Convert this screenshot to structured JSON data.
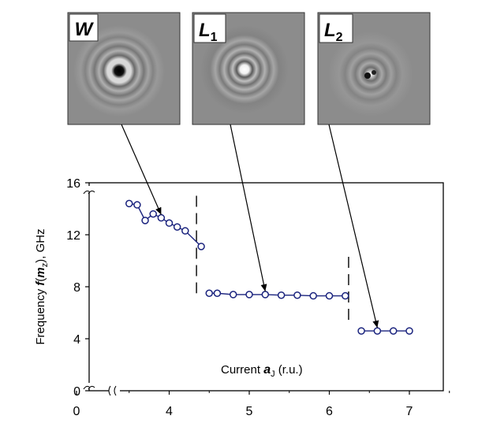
{
  "insets": [
    {
      "id": "W",
      "letter": "W",
      "subscript": ""
    },
    {
      "id": "L1",
      "letter": "L",
      "subscript": "1"
    },
    {
      "id": "L2",
      "letter": "L",
      "subscript": "2"
    }
  ],
  "chart_data": {
    "type": "line",
    "ylabel_pre": "Frequency ",
    "ylabel_f": "f",
    "ylabel_paren_open": "(",
    "ylabel_m": "m",
    "ylabel_sub": "z",
    "ylabel_post": "), GHz",
    "xlabel_pre": "Current ",
    "xlabel_a": "a",
    "xlabel_sub": "J",
    "xlabel_post": " (r.u.)",
    "x_ticks": [
      "0",
      "4",
      "5",
      "6",
      "7"
    ],
    "y_ticks": [
      "0",
      "4",
      "8",
      "12",
      "16"
    ],
    "axis_breaks": {
      "x": "between 0 and 3.5",
      "y": "between 0 and 4 and above 16"
    },
    "grid": false,
    "series": [
      {
        "mode": "W",
        "x": [
          3.5,
          3.6,
          3.7,
          3.8,
          3.9,
          4.0,
          4.1,
          4.2,
          4.4
        ],
        "y": [
          14.4,
          14.3,
          13.1,
          13.6,
          13.3,
          12.9,
          12.6,
          12.3,
          11.1
        ]
      },
      {
        "mode": "L1",
        "x": [
          4.5,
          4.6,
          4.8,
          5.0,
          5.2,
          5.4,
          5.6,
          5.8,
          6.0,
          6.2
        ],
        "y": [
          7.5,
          7.5,
          7.4,
          7.4,
          7.4,
          7.35,
          7.35,
          7.3,
          7.3,
          7.3
        ]
      },
      {
        "mode": "L2",
        "x": [
          6.4,
          6.6,
          6.8,
          7.0
        ],
        "y": [
          4.6,
          4.6,
          4.6,
          4.6
        ]
      }
    ],
    "transitions": [
      {
        "x": 4.4,
        "y_range": [
          7.5,
          15.0
        ]
      },
      {
        "x": 6.3,
        "y_range": [
          5.3,
          10.3
        ]
      }
    ],
    "colors": {
      "series": "#1a237e",
      "axes": "#000000",
      "inset_bg": "#8c8c8c"
    }
  }
}
